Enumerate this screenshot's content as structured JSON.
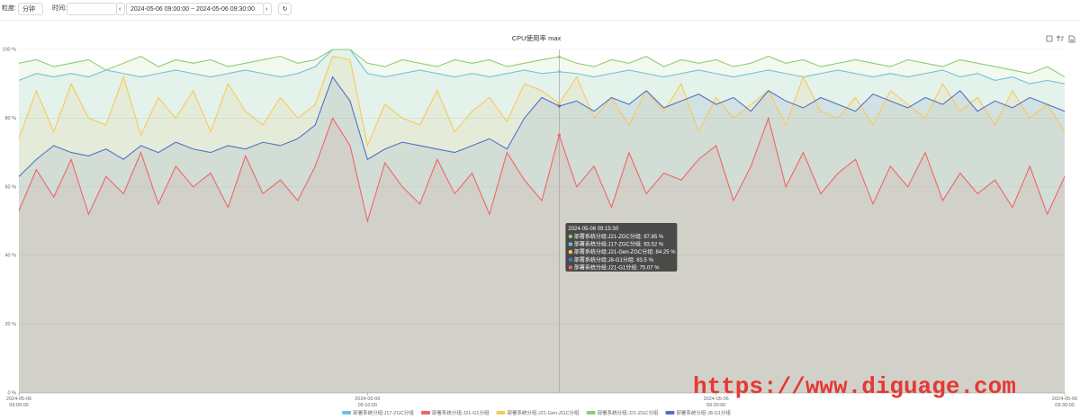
{
  "toolbar": {
    "granularity_label": "粒度:",
    "granularity": "分钟",
    "time_label": "时间:",
    "range": "2024-05-06 09:00:00 ~ 2024-05-06 09:30:00"
  },
  "watermark": "https://www.diguage.com",
  "chart_data": {
    "type": "line",
    "title": "CPU使用率 max",
    "x": [
      "2024-05-06 09:00:00",
      "2024-05-06 09:00:30",
      "2024-05-06 09:01:00",
      "2024-05-06 09:01:30",
      "2024-05-06 09:02:00",
      "2024-05-06 09:02:30",
      "2024-05-06 09:03:00",
      "2024-05-06 09:03:30",
      "2024-05-06 09:04:00",
      "2024-05-06 09:04:30",
      "2024-05-06 09:05:00",
      "2024-05-06 09:05:30",
      "2024-05-06 09:06:00",
      "2024-05-06 09:06:30",
      "2024-05-06 09:07:00",
      "2024-05-06 09:07:30",
      "2024-05-06 09:08:00",
      "2024-05-06 09:08:30",
      "2024-05-06 09:09:00",
      "2024-05-06 09:09:30",
      "2024-05-06 09:10:00",
      "2024-05-06 09:10:30",
      "2024-05-06 09:11:00",
      "2024-05-06 09:11:30",
      "2024-05-06 09:12:00",
      "2024-05-06 09:12:30",
      "2024-05-06 09:13:00",
      "2024-05-06 09:13:30",
      "2024-05-06 09:14:00",
      "2024-05-06 09:14:30",
      "2024-05-06 09:15:00",
      "2024-05-06 09:15:30",
      "2024-05-06 09:16:00",
      "2024-05-06 09:16:30",
      "2024-05-06 09:17:00",
      "2024-05-06 09:17:30",
      "2024-05-06 09:18:00",
      "2024-05-06 09:18:30",
      "2024-05-06 09:19:00",
      "2024-05-06 09:19:30",
      "2024-05-06 09:20:00",
      "2024-05-06 09:20:30",
      "2024-05-06 09:21:00",
      "2024-05-06 09:21:30",
      "2024-05-06 09:22:00",
      "2024-05-06 09:22:30",
      "2024-05-06 09:23:00",
      "2024-05-06 09:23:30",
      "2024-05-06 09:24:00",
      "2024-05-06 09:24:30",
      "2024-05-06 09:25:00",
      "2024-05-06 09:25:30",
      "2024-05-06 09:26:00",
      "2024-05-06 09:26:30",
      "2024-05-06 09:27:00",
      "2024-05-06 09:27:30",
      "2024-05-06 09:28:00",
      "2024-05-06 09:28:30",
      "2024-05-06 09:29:00",
      "2024-05-06 09:29:30",
      "2024-05-06 09:30:00"
    ],
    "xticks": [
      "2024-05-06 09:00:00",
      "2024-05-06 09:10:00",
      "2024-05-06 09:20:00",
      "2024-05-06 09:30:00"
    ],
    "ylim": [
      0,
      100
    ],
    "yticks": [
      {
        "value": 0,
        "label": "0 %"
      },
      {
        "value": 20,
        "label": "20 %"
      },
      {
        "value": 40,
        "label": "40 %"
      },
      {
        "value": 60,
        "label": "60 %"
      },
      {
        "value": 80,
        "label": "80 %"
      },
      {
        "value": 100,
        "label": "100 %"
      }
    ],
    "grid": true,
    "area": true,
    "legend": "bottom",
    "series": [
      {
        "name": "部署系统分组:J17-ZGC分组",
        "color": "#73c0de",
        "values": [
          91,
          93,
          92,
          93,
          92,
          94,
          93,
          92,
          93,
          94,
          93,
          92,
          93,
          94,
          93,
          92,
          93,
          95,
          100,
          100,
          93,
          92,
          93,
          94,
          93,
          92,
          93,
          92,
          93,
          94,
          93,
          93.52,
          93,
          92,
          93,
          94,
          93,
          92,
          93,
          94,
          93,
          92,
          93,
          94,
          93,
          92,
          93,
          94,
          93,
          92,
          93,
          92,
          93,
          94,
          92,
          93,
          91,
          92,
          90,
          91,
          90
        ]
      },
      {
        "name": "部署系统分组:J21-G1分组",
        "color": "#ee6666",
        "values": [
          53,
          65,
          57,
          68,
          52,
          63,
          58,
          70,
          55,
          66,
          60,
          64,
          54,
          69,
          58,
          62,
          56,
          66,
          80,
          72,
          50,
          67,
          60,
          55,
          68,
          58,
          64,
          52,
          70,
          62,
          56,
          75.07,
          60,
          66,
          54,
          70,
          58,
          64,
          62,
          68,
          72,
          56,
          66,
          80,
          60,
          70,
          58,
          64,
          68,
          55,
          66,
          60,
          70,
          56,
          64,
          58,
          62,
          54,
          66,
          52,
          63
        ]
      },
      {
        "name": "部署系统分组:J21-Gen-ZGC分组",
        "color": "#fac858",
        "values": [
          74,
          88,
          76,
          90,
          80,
          78,
          92,
          75,
          86,
          80,
          88,
          76,
          90,
          82,
          78,
          86,
          80,
          84,
          98,
          97,
          72,
          84,
          80,
          78,
          88,
          76,
          82,
          86,
          79,
          90,
          88,
          84.25,
          92,
          80,
          86,
          78,
          88,
          82,
          90,
          76,
          86,
          80,
          84,
          88,
          78,
          92,
          82,
          80,
          86,
          78,
          88,
          84,
          80,
          90,
          82,
          86,
          78,
          88,
          80,
          84,
          76
        ]
      },
      {
        "name": "部署系统分组:J21-ZGC分组",
        "color": "#91cc75",
        "values": [
          96,
          97,
          95,
          96,
          97,
          94,
          96,
          98,
          95,
          97,
          96,
          97,
          95,
          96,
          97,
          98,
          96,
          97,
          100,
          100,
          96,
          95,
          97,
          96,
          95,
          97,
          96,
          97,
          95,
          96,
          97,
          97.85,
          96,
          95,
          97,
          96,
          98,
          95,
          97,
          96,
          97,
          95,
          96,
          98,
          96,
          97,
          95,
          96,
          97,
          96,
          95,
          97,
          96,
          95,
          97,
          96,
          95,
          94,
          93,
          95,
          92
        ]
      },
      {
        "name": "部署系统分组:J8-G1分组",
        "color": "#5470c6",
        "values": [
          63,
          68,
          72,
          70,
          69,
          71,
          68,
          72,
          70,
          73,
          71,
          70,
          72,
          71,
          73,
          72,
          74,
          78,
          92,
          85,
          68,
          71,
          73,
          72,
          71,
          70,
          72,
          74,
          71,
          80,
          86,
          83.5,
          85,
          82,
          86,
          84,
          88,
          83,
          85,
          87,
          84,
          86,
          82,
          88,
          85,
          83,
          86,
          84,
          82,
          87,
          85,
          83,
          86,
          84,
          88,
          82,
          85,
          83,
          86,
          84,
          82
        ]
      }
    ],
    "tooltip": {
      "x": "2024-05-06 09:15:30",
      "items": [
        {
          "name": "部署系统分组:J21-ZGC分组",
          "label": "97.85 %"
        },
        {
          "name": "部署系统分组:J17-ZGC分组",
          "label": "93.52 %"
        },
        {
          "name": "部署系统分组:J21-Gen-ZGC分组",
          "label": "84.25 %"
        },
        {
          "name": "部署系统分组:J8-G1分组",
          "label": "83.5 %"
        },
        {
          "name": "部署系统分组:J21-G1分组",
          "label": "75.07 %"
        }
      ]
    }
  }
}
